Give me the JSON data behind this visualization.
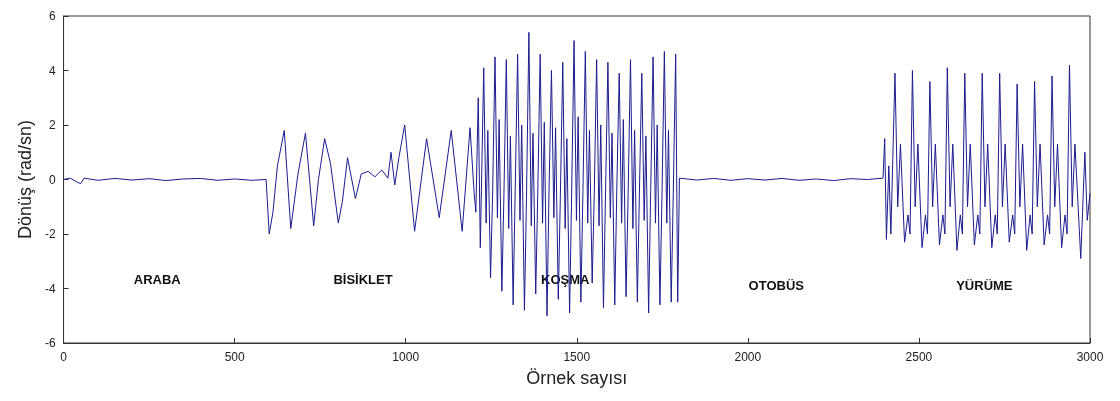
{
  "chart_data": {
    "type": "line",
    "xlabel": "Örnek sayısı",
    "ylabel": "Dönüş (rad/sn)",
    "xlim": [
      0,
      3000
    ],
    "ylim": [
      -6,
      6
    ],
    "xticks": [
      0,
      500,
      1000,
      1500,
      2000,
      2500,
      3000
    ],
    "yticks": [
      -6,
      -4,
      -2,
      0,
      2,
      4,
      6
    ],
    "grid": false,
    "series": [
      {
        "color": "#1c1c8f",
        "x": [
          0,
          20,
          40,
          50,
          60,
          100,
          150,
          200,
          250,
          300,
          350,
          400,
          450,
          500,
          550,
          592,
          601,
          612,
          625,
          645,
          664,
          685,
          707,
          731,
          745,
          763,
          780,
          803,
          815,
          830,
          853,
          870,
          890,
          910,
          930,
          948,
          957,
          968,
          980,
          997,
          1026,
          1061,
          1098,
          1133,
          1165,
          1188,
          1200,
          1205,
          1212,
          1218,
          1228,
          1235,
          1240,
          1248,
          1254,
          1261,
          1268,
          1273,
          1281,
          1287,
          1294,
          1301,
          1306,
          1314,
          1320,
          1327,
          1334,
          1339,
          1347,
          1353,
          1360,
          1367,
          1372,
          1380,
          1386,
          1393,
          1400,
          1405,
          1413,
          1419,
          1426,
          1433,
          1438,
          1446,
          1452,
          1459,
          1466,
          1471,
          1479,
          1485,
          1492,
          1499,
          1504,
          1512,
          1518,
          1525,
          1532,
          1537,
          1545,
          1551,
          1558,
          1565,
          1570,
          1578,
          1584,
          1591,
          1598,
          1603,
          1611,
          1617,
          1624,
          1631,
          1636,
          1644,
          1650,
          1657,
          1664,
          1669,
          1677,
          1683,
          1690,
          1697,
          1702,
          1710,
          1716,
          1723,
          1730,
          1735,
          1743,
          1749,
          1756,
          1763,
          1768,
          1776,
          1782,
          1789,
          1795,
          1800,
          1850,
          1900,
          1950,
          2000,
          2050,
          2100,
          2150,
          2200,
          2250,
          2300,
          2350,
          2395,
          2400,
          2405,
          2412,
          2418,
          2430,
          2438,
          2446,
          2458,
          2468,
          2474,
          2481,
          2489,
          2497,
          2509,
          2519,
          2525,
          2532,
          2540,
          2548,
          2560,
          2570,
          2576,
          2583,
          2591,
          2599,
          2611,
          2621,
          2627,
          2634,
          2642,
          2650,
          2662,
          2672,
          2678,
          2685,
          2693,
          2701,
          2713,
          2723,
          2729,
          2736,
          2744,
          2752,
          2764,
          2774,
          2780,
          2787,
          2795,
          2803,
          2815,
          2825,
          2831,
          2838,
          2846,
          2854,
          2866,
          2876,
          2882,
          2889,
          2897,
          2905,
          2917,
          2927,
          2933,
          2940,
          2948,
          2956,
          2973,
          2985,
          2992,
          3000
        ],
        "values": [
          0,
          0.05,
          -0.1,
          -0.15,
          0.05,
          -0.03,
          0.04,
          -0.02,
          0.03,
          -0.04,
          0.02,
          0.04,
          -0.03,
          0.02,
          -0.03,
          0,
          -2,
          -1.2,
          0.5,
          1.8,
          -1.8,
          0.2,
          1.7,
          -1.7,
          0,
          1.5,
          0.6,
          -1.6,
          -0.8,
          0.8,
          -0.7,
          0.2,
          0.3,
          0.1,
          0.35,
          0.05,
          1,
          -0.2,
          0.8,
          2,
          -1.9,
          1.5,
          -1.4,
          1.8,
          -1.9,
          1.9,
          -0.5,
          -1.2,
          3,
          -2.5,
          4.1,
          -1.6,
          1.8,
          -3.6,
          -0.5,
          4.5,
          -1.4,
          2.2,
          -4.1,
          -0.6,
          4.4,
          -1.8,
          1.6,
          -4.6,
          -0.4,
          4.6,
          -1.5,
          2,
          -4.8,
          -0.7,
          5.4,
          -1.7,
          1.7,
          -4.2,
          -0.5,
          4.6,
          -1.6,
          2.1,
          -5,
          -0.3,
          4,
          -1.4,
          1.9,
          -4.4,
          -0.6,
          4.3,
          -1.8,
          1.5,
          -4.9,
          -0.5,
          5.1,
          -1.5,
          2.3,
          -4.5,
          -0.4,
          4.7,
          -1.6,
          1.8,
          -3.8,
          -0.6,
          4.4,
          -1.7,
          2,
          -4.7,
          -0.5,
          4.3,
          -1.4,
          1.7,
          -4.6,
          -0.3,
          3.9,
          -1.6,
          2.2,
          -4.3,
          -0.6,
          4.4,
          -1.8,
          1.8,
          -4.5,
          -0.5,
          3.9,
          -1.5,
          1.6,
          -4.9,
          -0.4,
          4.5,
          -1.6,
          2,
          -4.6,
          -0.6,
          4.7,
          -1.6,
          1.8,
          -4.5,
          -0.5,
          4.6,
          -4.5,
          0.05,
          -0.02,
          0.04,
          -0.03,
          0.03,
          -0.02,
          0.04,
          -0.03,
          0.02,
          -0.04,
          0.03,
          0,
          0.05,
          1.5,
          -2.2,
          0.5,
          -2,
          3.9,
          -1,
          1.3,
          -2.3,
          -1.3,
          -2,
          4,
          -1,
          1.3,
          -2.5,
          -1.3,
          -2,
          3.6,
          -1,
          1.3,
          -2.4,
          -1.3,
          -2,
          4.1,
          -1,
          1.3,
          -2.6,
          -1.3,
          -2,
          3.9,
          -1,
          1.3,
          -2.4,
          -1.3,
          -2,
          3.9,
          -1,
          1.3,
          -2.5,
          -1.3,
          -2,
          3.9,
          -1,
          1.3,
          -2.3,
          -1.3,
          -2,
          3.5,
          -1,
          1.3,
          -2.6,
          -1.3,
          -2,
          3.6,
          -1,
          1.3,
          -2.4,
          -1.3,
          -2,
          3.8,
          -1,
          1.3,
          -2.5,
          -1.3,
          -2,
          4.2,
          -1,
          1.3,
          -2.9,
          1,
          -1.5,
          -0.5
        ]
      }
    ],
    "annotations": [
      "ARABA",
      "BİSİKLET",
      "KOŞMA",
      "OTOBÜS",
      "YÜRÜME"
    ]
  }
}
